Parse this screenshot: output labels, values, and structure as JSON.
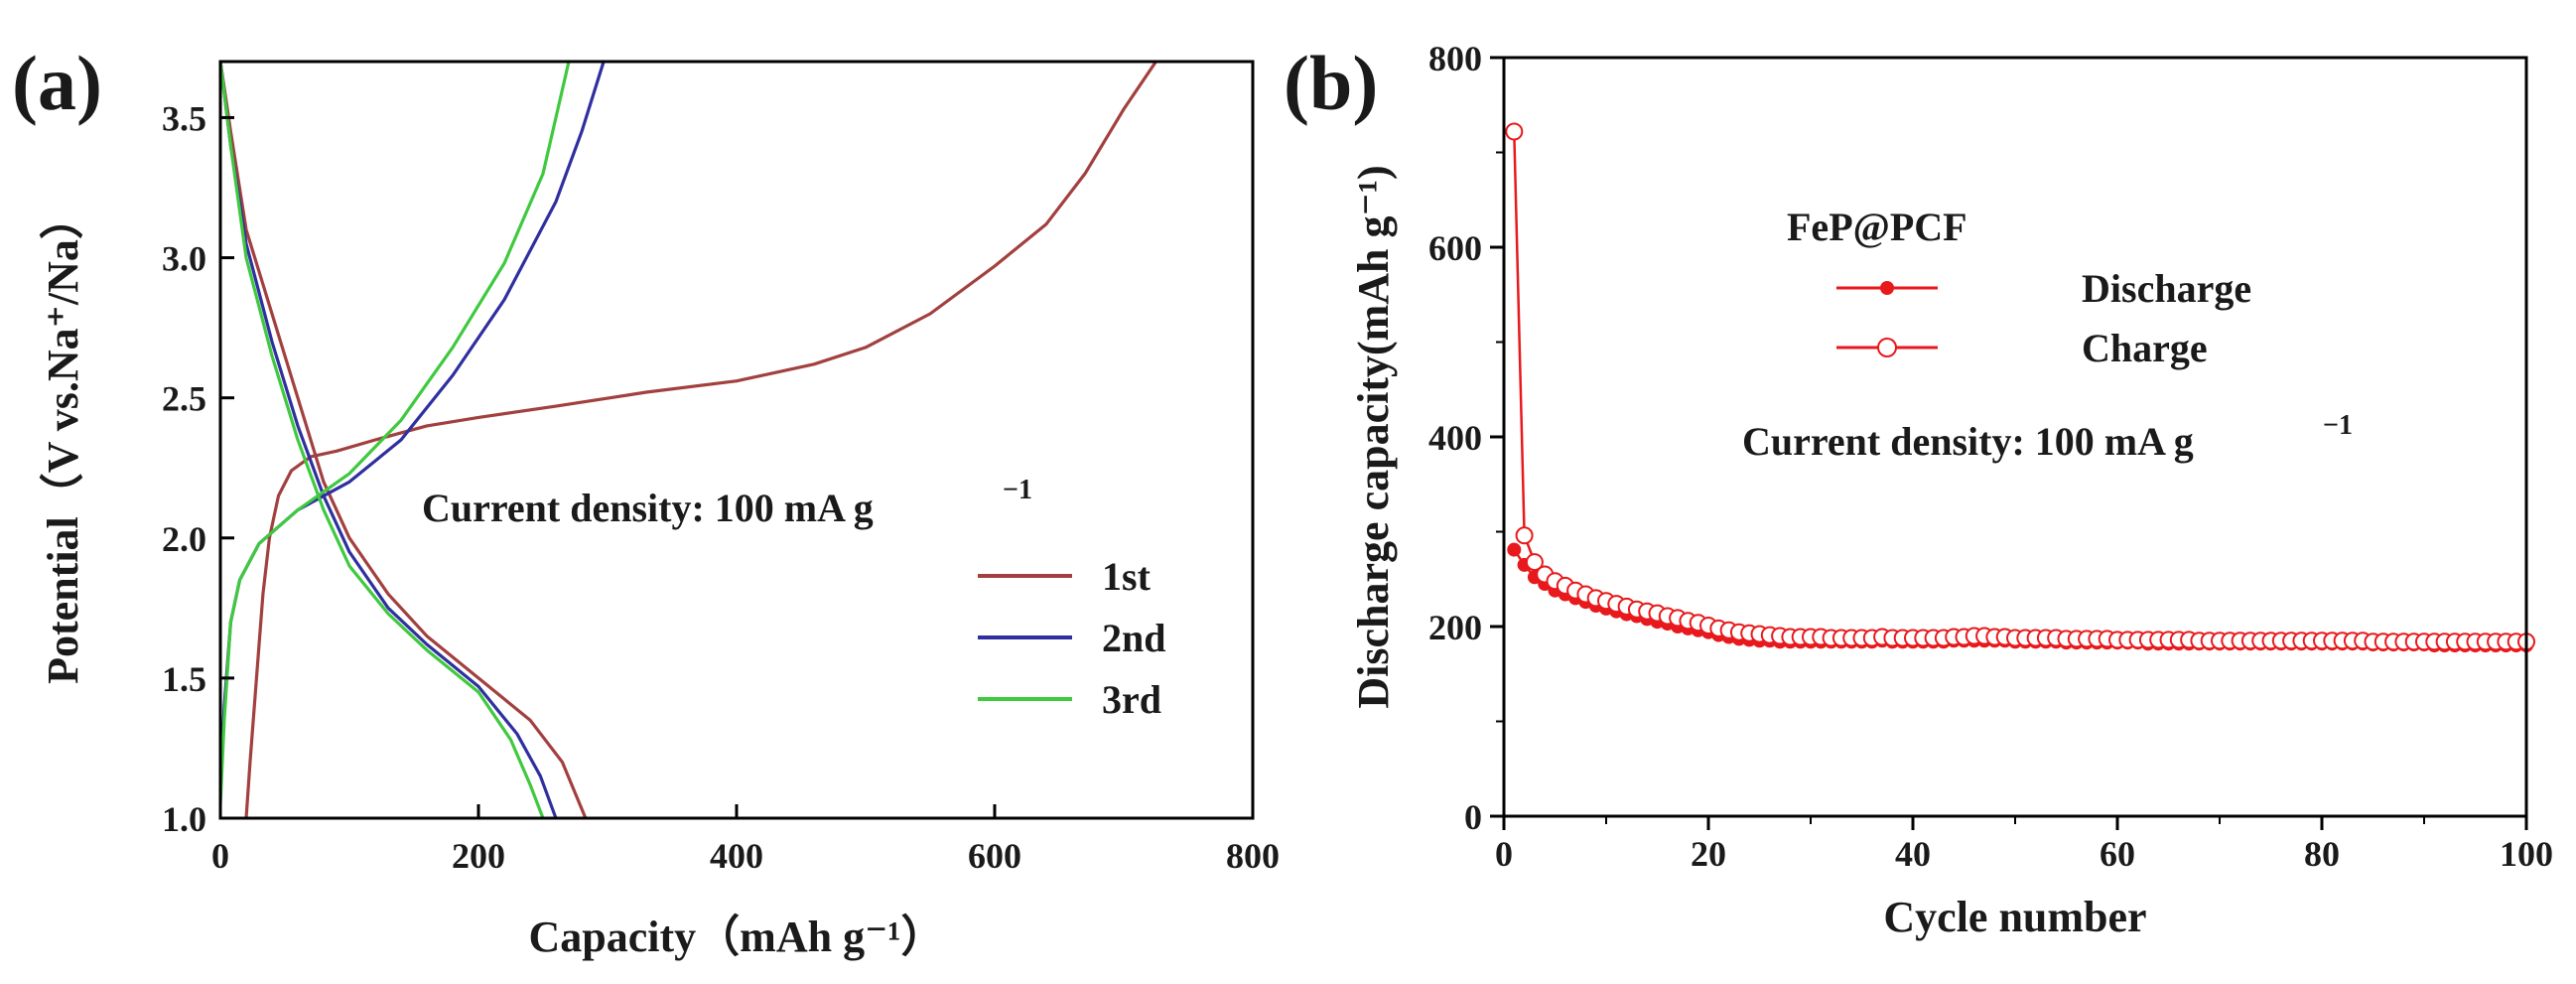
{
  "chart_data": [
    {
      "panel": "(a)",
      "type": "line",
      "title": "",
      "xlabel": "Capacity（mAh g⁻¹）",
      "ylabel": "Potential（V vs.Na⁺/Na）",
      "xlim": [
        0,
        800
      ],
      "ylim": [
        1.0,
        3.7
      ],
      "xticks": [
        "0",
        "200",
        "400",
        "600",
        "800"
      ],
      "yticks": [
        "1.0",
        "1.5",
        "2.0",
        "2.5",
        "3.0",
        "3.5"
      ],
      "annotation": {
        "text": "Current density:  100 mA g",
        "sup": "−1"
      },
      "legend_position": "right",
      "series": [
        {
          "name": "1st",
          "color": "#a2403f",
          "segments": [
            [
              [
                20,
                1.0
              ],
              [
                23,
                1.2
              ],
              [
                28,
                1.5
              ],
              [
                33,
                1.8
              ],
              [
                38,
                2.0
              ],
              [
                45,
                2.15
              ],
              [
                55,
                2.24
              ],
              [
                70,
                2.29
              ],
              [
                90,
                2.31
              ],
              [
                120,
                2.35
              ],
              [
                160,
                2.4
              ],
              [
                200,
                2.43
              ],
              [
                260,
                2.47
              ],
              [
                330,
                2.52
              ],
              [
                400,
                2.56
              ],
              [
                460,
                2.62
              ],
              [
                500,
                2.68
              ],
              [
                550,
                2.8
              ],
              [
                600,
                2.97
              ],
              [
                640,
                3.12
              ],
              [
                670,
                3.3
              ],
              [
                700,
                3.53
              ],
              [
                725,
                3.7
              ]
            ],
            [
              [
                0,
                3.7
              ],
              [
                8,
                3.45
              ],
              [
                20,
                3.1
              ],
              [
                40,
                2.8
              ],
              [
                60,
                2.5
              ],
              [
                80,
                2.2
              ],
              [
                100,
                2.0
              ],
              [
                130,
                1.8
              ],
              [
                160,
                1.65
              ],
              [
                200,
                1.5
              ],
              [
                240,
                1.35
              ],
              [
                265,
                1.2
              ],
              [
                283,
                1.0
              ]
            ]
          ]
        },
        {
          "name": "2nd",
          "color": "#2f2fa0",
          "segments": [
            [
              [
                0,
                1.1
              ],
              [
                3,
                1.4
              ],
              [
                8,
                1.7
              ],
              [
                15,
                1.85
              ],
              [
                30,
                1.98
              ],
              [
                60,
                2.1
              ],
              [
                100,
                2.2
              ],
              [
                140,
                2.35
              ],
              [
                180,
                2.58
              ],
              [
                220,
                2.85
              ],
              [
                260,
                3.2
              ],
              [
                280,
                3.45
              ],
              [
                297,
                3.7
              ]
            ],
            [
              [
                0,
                3.7
              ],
              [
                8,
                3.4
              ],
              [
                20,
                3.05
              ],
              [
                40,
                2.7
              ],
              [
                60,
                2.4
              ],
              [
                80,
                2.15
              ],
              [
                100,
                1.95
              ],
              [
                130,
                1.75
              ],
              [
                160,
                1.62
              ],
              [
                200,
                1.47
              ],
              [
                230,
                1.3
              ],
              [
                248,
                1.15
              ],
              [
                260,
                1.0
              ]
            ]
          ]
        },
        {
          "name": "3rd",
          "color": "#3fc93f",
          "segments": [
            [
              [
                0,
                1.05
              ],
              [
                3,
                1.35
              ],
              [
                8,
                1.7
              ],
              [
                15,
                1.85
              ],
              [
                30,
                1.98
              ],
              [
                60,
                2.1
              ],
              [
                100,
                2.23
              ],
              [
                140,
                2.42
              ],
              [
                180,
                2.68
              ],
              [
                220,
                2.98
              ],
              [
                250,
                3.3
              ],
              [
                270,
                3.7
              ]
            ],
            [
              [
                0,
                3.7
              ],
              [
                8,
                3.4
              ],
              [
                20,
                3.0
              ],
              [
                40,
                2.65
              ],
              [
                60,
                2.35
              ],
              [
                80,
                2.1
              ],
              [
                100,
                1.9
              ],
              [
                130,
                1.73
              ],
              [
                160,
                1.6
              ],
              [
                200,
                1.45
              ],
              [
                225,
                1.28
              ],
              [
                240,
                1.12
              ],
              [
                250,
                1.0
              ]
            ]
          ]
        }
      ]
    },
    {
      "panel": "(b)",
      "type": "scatter",
      "title": "",
      "xlabel": "Cycle number",
      "ylabel": "Discharge capacity(mAh g⁻¹)",
      "xlim": [
        0,
        100
      ],
      "ylim": [
        0,
        800
      ],
      "xticks": [
        "0",
        "20",
        "40",
        "60",
        "80",
        "100"
      ],
      "yticks": [
        "0",
        "200",
        "400",
        "600",
        "800"
      ],
      "legend_title": "FeP@PCF",
      "annotation": {
        "text": "Current density:  100 mA g",
        "sup": "−1"
      },
      "legend_position": "top-center",
      "series": [
        {
          "name": "Discharge",
          "color": "#e8191c",
          "marker": "filled-circle",
          "values": [
            281,
            265,
            252,
            245,
            238,
            234,
            230,
            226,
            222,
            219,
            216,
            213,
            211,
            208,
            205,
            203,
            200,
            198,
            196,
            194,
            191,
            189,
            187,
            186,
            185,
            185,
            184,
            184,
            184,
            184,
            184,
            184,
            184,
            184,
            184,
            184,
            185,
            184,
            184,
            184,
            184,
            184,
            184,
            185,
            185,
            185,
            185,
            185,
            185,
            184,
            184,
            184,
            184,
            184,
            183,
            183,
            183,
            183,
            183,
            183,
            183,
            183,
            182,
            182,
            182,
            182,
            182,
            182,
            182,
            182,
            182,
            182,
            182,
            182,
            182,
            182,
            182,
            182,
            182,
            182,
            182,
            182,
            182,
            182,
            181,
            181,
            181,
            181,
            181,
            181,
            180,
            180,
            180,
            180,
            180,
            180,
            180,
            180,
            180,
            180
          ]
        },
        {
          "name": "Charge",
          "color": "#e8191c",
          "marker": "open-circle",
          "values": [
            722,
            296,
            268,
            255,
            248,
            243,
            238,
            234,
            230,
            227,
            224,
            221,
            218,
            216,
            214,
            211,
            209,
            206,
            204,
            201,
            198,
            196,
            194,
            193,
            192,
            191,
            190,
            189,
            189,
            189,
            189,
            188,
            188,
            188,
            188,
            188,
            189,
            188,
            188,
            188,
            188,
            188,
            188,
            189,
            189,
            190,
            190,
            189,
            189,
            188,
            188,
            188,
            188,
            188,
            187,
            187,
            187,
            187,
            187,
            186,
            186,
            186,
            186,
            186,
            186,
            186,
            186,
            185,
            185,
            185,
            185,
            185,
            185,
            185,
            185,
            185,
            185,
            185,
            185,
            185,
            185,
            185,
            185,
            185,
            184,
            184,
            184,
            184,
            184,
            184,
            184,
            184,
            184,
            184,
            184,
            184,
            184,
            184,
            184,
            184
          ]
        }
      ]
    }
  ]
}
